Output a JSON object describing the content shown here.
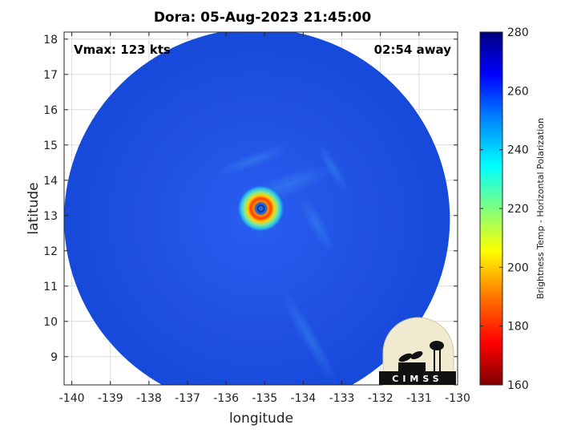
{
  "title": "Dora: 05-Aug-2023 21:45:00",
  "overlay": {
    "vmax": "Vmax: 123 kts",
    "time_away": "02:54 away"
  },
  "storm": {
    "name": "Dora",
    "center_lon": -135.1,
    "center_lat": 13.2
  },
  "swath": {
    "center_lon": -135.2,
    "center_lat": 12.9,
    "radius_lon": 5.0,
    "radius_lat": 5.4
  },
  "axes": {
    "xlabel": "longitude",
    "ylabel": "latitude",
    "xlim": [
      -140.2,
      -130
    ],
    "ylim": [
      8.2,
      18.2
    ],
    "xticks": [
      -140,
      -139,
      -138,
      -137,
      -136,
      -135,
      -134,
      -133,
      -132,
      -131,
      -130
    ],
    "yticks": [
      9,
      10,
      11,
      12,
      13,
      14,
      15,
      16,
      17,
      18
    ],
    "grid": true
  },
  "colorbar": {
    "label": "Brightness Temp - Horizontal Polarization",
    "range": [
      160,
      280
    ],
    "ticks": [
      160,
      180,
      200,
      220,
      240,
      260,
      280
    ],
    "colormap": [
      "#7f0000",
      "#ff0000",
      "#ff7f00",
      "#ffff00",
      "#7fff7f",
      "#00ffff",
      "#007fff",
      "#0000ff",
      "#00007f"
    ]
  },
  "logo": {
    "text": "CIMSS"
  },
  "colors": {
    "background_field": "#1e4fe0",
    "eye": "#2255dd",
    "eyewall_inner": "#ff5a00",
    "eyewall_outer": "#ffd800"
  }
}
